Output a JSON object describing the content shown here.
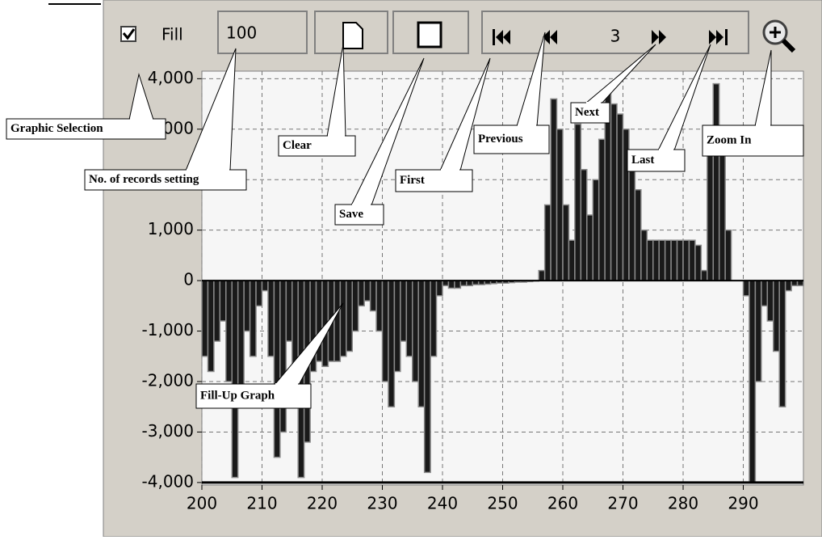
{
  "toolbar": {
    "fill_label": "Fill",
    "records": "100",
    "page": "3"
  },
  "callouts": [
    "Graphic Selection",
    "No. of records setting",
    "Clear",
    "Save",
    "First",
    "Previous",
    "Next",
    "Last",
    "Zoom In",
    "Fill-Up Graph"
  ],
  "chart_data": {
    "type": "bar",
    "color": "#1a1a1a",
    "grid": true,
    "xlim": [
      200,
      300
    ],
    "ylim": [
      -4050,
      4150
    ],
    "xticks": [
      200,
      210,
      220,
      230,
      240,
      250,
      260,
      270,
      280,
      290
    ],
    "yticks": [
      {
        "value": -4000,
        "label": "-4,000"
      },
      {
        "value": -3000,
        "label": "-3,000"
      },
      {
        "value": -2000,
        "label": "-2,000"
      },
      {
        "value": -1000,
        "label": "-1,000"
      },
      0,
      {
        "value": 1000,
        "label": "1,000"
      },
      {
        "value": 2000,
        "label": "2,000"
      },
      {
        "value": 3000,
        "label": "3,000"
      },
      {
        "value": 4000,
        "label": "4,000"
      }
    ],
    "x": [
      200,
      201,
      202,
      203,
      204,
      205,
      206,
      207,
      208,
      209,
      210,
      211,
      212,
      213,
      214,
      215,
      216,
      217,
      218,
      219,
      220,
      221,
      222,
      223,
      224,
      225,
      226,
      227,
      228,
      229,
      230,
      231,
      232,
      233,
      234,
      235,
      236,
      237,
      238,
      239,
      240,
      241,
      242,
      243,
      244,
      245,
      246,
      247,
      248,
      249,
      250,
      251,
      252,
      253,
      254,
      255,
      256,
      257,
      258,
      259,
      260,
      261,
      262,
      263,
      264,
      265,
      266,
      267,
      268,
      269,
      270,
      271,
      272,
      273,
      274,
      275,
      276,
      277,
      278,
      279,
      280,
      281,
      282,
      283,
      284,
      285,
      286,
      287,
      288,
      289,
      290,
      291,
      292,
      293,
      294,
      295,
      296,
      297,
      298,
      299
    ],
    "values": [
      -1500,
      -1800,
      -1200,
      -800,
      -2000,
      -3900,
      -2500,
      -1000,
      -1500,
      -500,
      -200,
      -1500,
      -3500,
      -3000,
      -1200,
      -2500,
      -3900,
      -3200,
      -1800,
      -1600,
      -1700,
      -1600,
      -1600,
      -1500,
      -1400,
      -1000,
      -500,
      -400,
      -600,
      -1000,
      -2000,
      -2500,
      -1800,
      -1200,
      -1500,
      -2000,
      -2500,
      -3800,
      -1500,
      -300,
      -100,
      -150,
      -150,
      -100,
      -100,
      -80,
      -80,
      -70,
      -60,
      -50,
      -50,
      -40,
      -30,
      -30,
      -20,
      -10,
      200,
      1500,
      3600,
      3000,
      1500,
      800,
      3100,
      2200,
      1300,
      2000,
      2800,
      3800,
      3500,
      3300,
      3000,
      2200,
      1800,
      1000,
      800,
      800,
      800,
      800,
      800,
      800,
      800,
      800,
      700,
      200,
      2500,
      3900,
      2500,
      1000,
      0,
      0,
      -300,
      -4000,
      -2000,
      -500,
      -800,
      -1400,
      -2500,
      -200,
      -100,
      -100
    ]
  }
}
